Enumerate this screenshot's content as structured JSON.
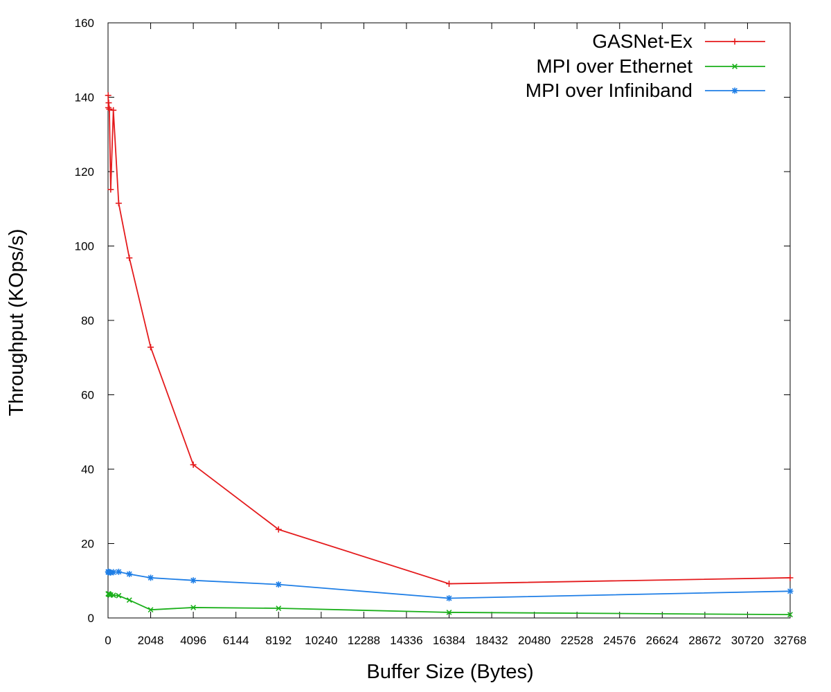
{
  "chart_data": {
    "type": "line",
    "title": "",
    "xlabel": "Buffer Size (Bytes)",
    "ylabel": "Throughput (KOps/s)",
    "xlim": [
      0,
      32768
    ],
    "ylim": [
      0,
      160
    ],
    "xticks": [
      0,
      2048,
      4096,
      6144,
      8192,
      10240,
      12288,
      14336,
      16384,
      18432,
      20480,
      22528,
      24576,
      26624,
      28672,
      30720,
      32768
    ],
    "xtick_labels": [
      "0",
      "2048",
      "4096",
      "6144",
      "8192",
      "10240",
      "12288",
      "14336",
      "16384",
      "18432",
      "20480",
      "22528",
      "24576",
      "26624",
      "28672",
      "30720",
      "32768"
    ],
    "yticks": [
      0,
      20,
      40,
      60,
      80,
      100,
      120,
      140,
      160
    ],
    "ytick_labels": [
      "0",
      "20",
      "40",
      "60",
      "80",
      "100",
      "120",
      "140",
      "160"
    ],
    "grid": false,
    "legend_position": "top-right",
    "series": [
      {
        "name": "GASNet-Ex",
        "color": "#e41a1c",
        "marker": "plus",
        "x": [
          8,
          16,
          32,
          64,
          128,
          256,
          512,
          1024,
          2048,
          4096,
          8192,
          16384,
          32768
        ],
        "y": [
          140.5,
          137.2,
          138.5,
          136.8,
          115.2,
          136.5,
          111.5,
          96.8,
          72.8,
          41.2,
          23.8,
          9.2,
          10.8
        ]
      },
      {
        "name": "MPI over Ethernet",
        "color": "#1aaf1a",
        "marker": "x",
        "x": [
          8,
          16,
          32,
          64,
          128,
          256,
          512,
          1024,
          2048,
          4096,
          8192,
          16384,
          32768
        ],
        "y": [
          6.5,
          6.4,
          6.5,
          6.3,
          6.2,
          6.1,
          6.0,
          4.8,
          2.2,
          2.8,
          2.6,
          1.5,
          0.9
        ]
      },
      {
        "name": "MPI over Infiniband",
        "color": "#1e7ee6",
        "marker": "star",
        "x": [
          8,
          16,
          32,
          64,
          128,
          256,
          512,
          1024,
          2048,
          4096,
          8192,
          16384,
          32768
        ],
        "y": [
          12.4,
          12.3,
          12.4,
          12.3,
          12.2,
          12.3,
          12.4,
          11.8,
          10.8,
          10.1,
          9.0,
          5.3,
          7.2
        ]
      }
    ]
  }
}
